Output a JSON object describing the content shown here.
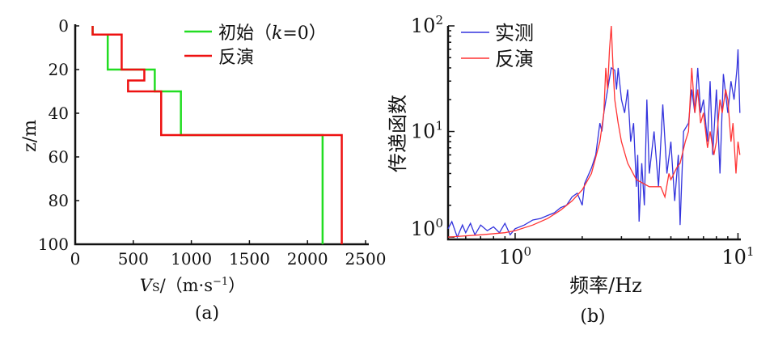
{
  "chart_data": [
    {
      "type": "line",
      "subtype": "step-profile",
      "caption": "(a)",
      "xlabel": "V",
      "xlabel_sub": "S",
      "xlabel_unit": "/（m·s",
      "xlabel_exp": "−1",
      "xlabel_close": "）",
      "ylabel": "z/m",
      "xlim": [
        0,
        2500
      ],
      "ylim": [
        0,
        100
      ],
      "y_inverted": true,
      "xticks": [
        0,
        500,
        1000,
        1500,
        2000,
        2500
      ],
      "yticks": [
        0,
        20,
        40,
        60,
        80,
        100
      ],
      "legend_position": "top-right",
      "series": [
        {
          "name": "初始（k=0）",
          "legend_prefix": "初始（",
          "legend_k": "k",
          "legend_suffix": "=0）",
          "color": "#22dd22",
          "layers": [
            [
              0,
              4,
              150
            ],
            [
              4,
              20,
              280
            ],
            [
              20,
              30,
              685
            ],
            [
              30,
              50,
              910
            ],
            [
              50,
              100,
              2130
            ]
          ]
        },
        {
          "name": "反演",
          "color": "#ee1111",
          "layers": [
            [
              0,
              4,
              150
            ],
            [
              4,
              20,
              400
            ],
            [
              20,
              25,
              595
            ],
            [
              25,
              30,
              455
            ],
            [
              30,
              50,
              740
            ],
            [
              50,
              100,
              2295
            ]
          ]
        }
      ]
    },
    {
      "type": "line",
      "scale": "log-log",
      "caption": "(b)",
      "xlabel": "频率/Hz",
      "ylabel": "传递函数",
      "xlim": [
        0.5,
        10.3
      ],
      "ylim": [
        0.95,
        100
      ],
      "xticks": [
        {
          "value": 1,
          "base": "10",
          "exp": "0"
        },
        {
          "value": 10,
          "base": "10",
          "exp": "1"
        }
      ],
      "yticks": [
        {
          "value": 1,
          "base": "10",
          "exp": "0"
        },
        {
          "value": 10,
          "base": "10",
          "exp": "1"
        },
        {
          "value": 100,
          "base": "10",
          "exp": "2"
        }
      ],
      "legend_position": "top-left",
      "series": [
        {
          "name": "实测",
          "color": "#3333dd",
          "points": [
            [
              0.5,
              1.2
            ],
            [
              0.52,
              1.4
            ],
            [
              0.55,
              1.0
            ],
            [
              0.58,
              1.3
            ],
            [
              0.6,
              1.1
            ],
            [
              0.63,
              1.35
            ],
            [
              0.66,
              1.05
            ],
            [
              0.7,
              1.3
            ],
            [
              0.75,
              1.15
            ],
            [
              0.8,
              1.25
            ],
            [
              0.85,
              1.1
            ],
            [
              0.9,
              1.35
            ],
            [
              0.95,
              1.05
            ],
            [
              1.0,
              1.2
            ],
            [
              1.1,
              1.3
            ],
            [
              1.2,
              1.45
            ],
            [
              1.3,
              1.5
            ],
            [
              1.4,
              1.6
            ],
            [
              1.5,
              1.7
            ],
            [
              1.6,
              1.9
            ],
            [
              1.7,
              2.0
            ],
            [
              1.8,
              2.4
            ],
            [
              1.9,
              2.6
            ],
            [
              2.0,
              2.0
            ],
            [
              2.05,
              3.2
            ],
            [
              2.2,
              4.5
            ],
            [
              2.3,
              6
            ],
            [
              2.4,
              12
            ],
            [
              2.45,
              10
            ],
            [
              2.5,
              15
            ],
            [
              2.6,
              25
            ],
            [
              2.7,
              40
            ],
            [
              2.8,
              38
            ],
            [
              2.85,
              25
            ],
            [
              2.9,
              40
            ],
            [
              3.0,
              20
            ],
            [
              3.1,
              15
            ],
            [
              3.2,
              25
            ],
            [
              3.3,
              8
            ],
            [
              3.4,
              12
            ],
            [
              3.5,
              3
            ],
            [
              3.55,
              6
            ],
            [
              3.6,
              1.4
            ],
            [
              3.7,
              5
            ],
            [
              3.8,
              2
            ],
            [
              3.9,
              20
            ],
            [
              4.0,
              4
            ],
            [
              4.2,
              10
            ],
            [
              4.4,
              3
            ],
            [
              4.6,
              18
            ],
            [
              4.8,
              4
            ],
            [
              5.0,
              8
            ],
            [
              5.2,
              2.2
            ],
            [
              5.4,
              6
            ],
            [
              5.5,
              1.3
            ],
            [
              5.7,
              10
            ],
            [
              6.0,
              12
            ],
            [
              6.2,
              25
            ],
            [
              6.4,
              15
            ],
            [
              6.6,
              40
            ],
            [
              6.8,
              15
            ],
            [
              7.0,
              20
            ],
            [
              7.3,
              8
            ],
            [
              7.5,
              30
            ],
            [
              7.7,
              6
            ],
            [
              8.0,
              25
            ],
            [
              8.3,
              4
            ],
            [
              8.6,
              35
            ],
            [
              9.0,
              15
            ],
            [
              9.3,
              30
            ],
            [
              9.6,
              20
            ],
            [
              9.9,
              40
            ],
            [
              10.0,
              60
            ],
            [
              10.2,
              15
            ]
          ]
        },
        {
          "name": "反演",
          "color": "#ff3333",
          "points": [
            [
              0.5,
              1.0
            ],
            [
              0.7,
              1.05
            ],
            [
              0.9,
              1.1
            ],
            [
              1.0,
              1.15
            ],
            [
              1.2,
              1.3
            ],
            [
              1.4,
              1.5
            ],
            [
              1.6,
              1.8
            ],
            [
              1.8,
              2.2
            ],
            [
              2.0,
              2.8
            ],
            [
              2.2,
              4.0
            ],
            [
              2.4,
              8
            ],
            [
              2.5,
              15
            ],
            [
              2.55,
              40
            ],
            [
              2.6,
              25
            ],
            [
              2.65,
              60
            ],
            [
              2.7,
              100
            ],
            [
              2.75,
              40
            ],
            [
              2.8,
              20
            ],
            [
              2.9,
              12
            ],
            [
              3.0,
              8
            ],
            [
              3.2,
              5
            ],
            [
              3.5,
              3.5
            ],
            [
              4.0,
              3.0
            ],
            [
              4.5,
              3.0
            ],
            [
              4.7,
              2.4
            ],
            [
              4.9,
              4
            ],
            [
              5.0,
              3.5
            ],
            [
              5.3,
              4.5
            ],
            [
              5.5,
              5
            ],
            [
              5.8,
              8
            ],
            [
              6.0,
              10
            ],
            [
              6.2,
              40
            ],
            [
              6.4,
              15
            ],
            [
              6.6,
              25
            ],
            [
              6.8,
              12
            ],
            [
              7.0,
              15
            ],
            [
              7.3,
              7
            ],
            [
              7.5,
              10
            ],
            [
              7.8,
              6
            ],
            [
              8.0,
              8
            ],
            [
              8.3,
              20
            ],
            [
              8.5,
              15
            ],
            [
              8.8,
              25
            ],
            [
              9.0,
              20
            ],
            [
              9.3,
              8
            ],
            [
              9.5,
              12
            ],
            [
              9.8,
              4
            ],
            [
              10.0,
              8
            ],
            [
              10.2,
              6
            ]
          ]
        }
      ]
    }
  ]
}
